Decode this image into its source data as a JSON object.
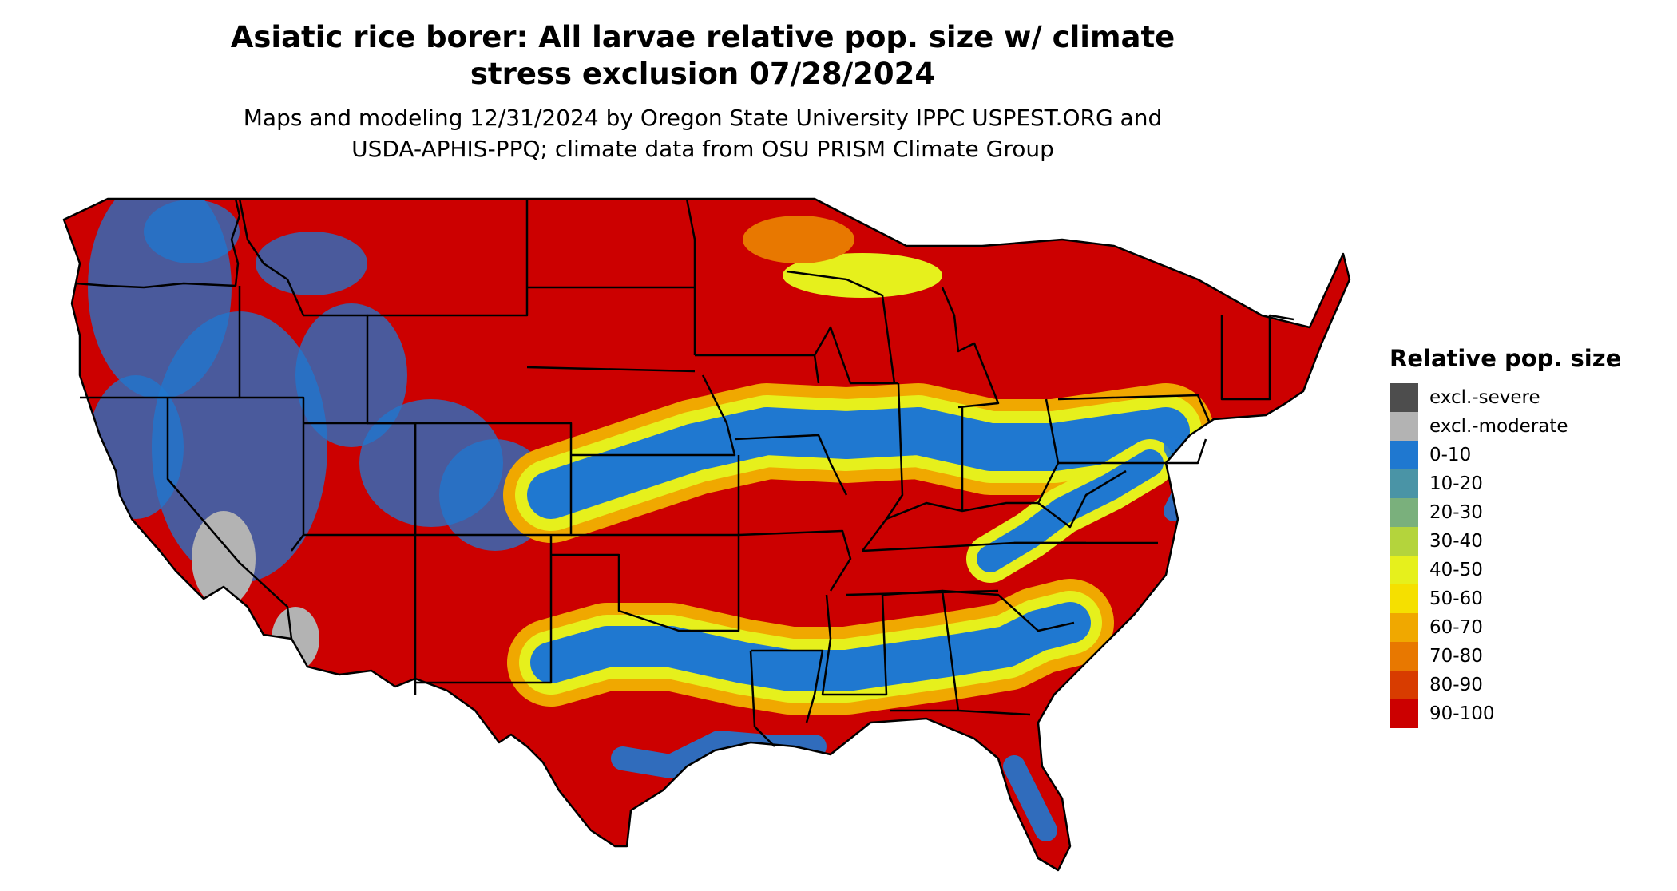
{
  "title_line1": "Asiatic rice borer: All larvae relative pop. size w/ climate",
  "title_line2": "stress exclusion 07/28/2024",
  "subtitle_line1": "Maps and modeling 12/31/2024 by Oregon State University IPPC USPEST.ORG and",
  "subtitle_line2": "USDA-APHIS-PPQ; climate data from OSU PRISM Climate Group",
  "legend": {
    "title": "Relative pop. size",
    "items": [
      {
        "label": "excl.-severe",
        "color": "#4d4d4d"
      },
      {
        "label": "excl.-moderate",
        "color": "#b3b3b3"
      },
      {
        "label": "0-10",
        "color": "#1f78d0"
      },
      {
        "label": "10-20",
        "color": "#4a94a6"
      },
      {
        "label": "20-30",
        "color": "#7ab07c"
      },
      {
        "label": "30-40",
        "color": "#b4d43c"
      },
      {
        "label": "40-50",
        "color": "#e6f01c"
      },
      {
        "label": "50-60",
        "color": "#f5e000"
      },
      {
        "label": "60-70",
        "color": "#f0a800"
      },
      {
        "label": "70-80",
        "color": "#e87800"
      },
      {
        "label": "80-90",
        "color": "#d83c00"
      },
      {
        "label": "90-100",
        "color": "#cc0000"
      }
    ]
  }
}
